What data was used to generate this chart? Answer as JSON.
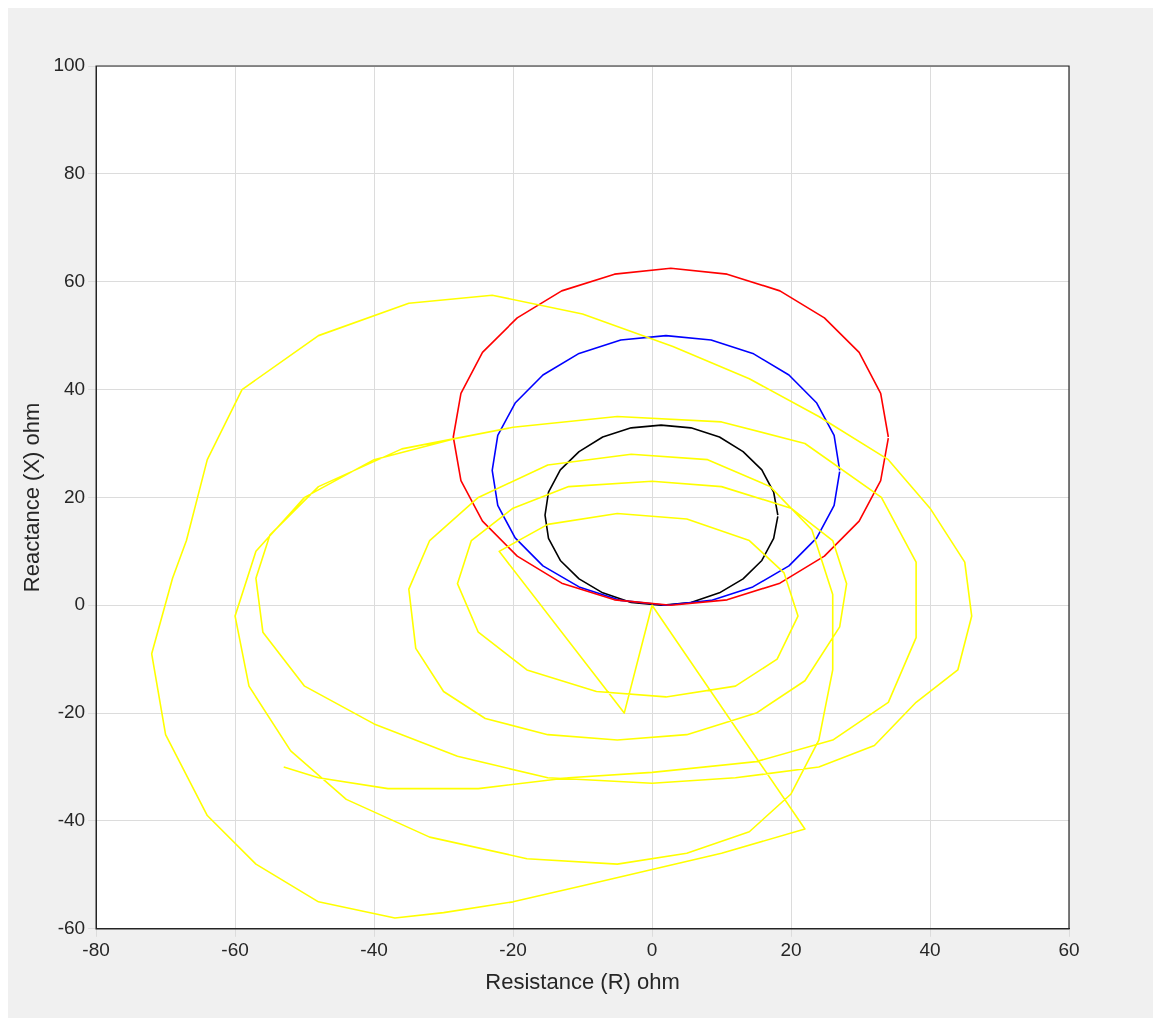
{
  "chart_data": {
    "type": "line",
    "xlabel": "Resistance (R) ohm",
    "ylabel": "Reactance (X) ohm",
    "xlim": [
      -80,
      60
    ],
    "xticks": [
      -80,
      -60,
      -40,
      -20,
      0,
      20,
      40,
      60
    ],
    "ylim": [
      -60,
      100
    ],
    "yticks": [
      -60,
      -40,
      -20,
      0,
      20,
      40,
      60,
      80,
      100
    ],
    "grid": true,
    "legend": false,
    "marker": "none",
    "line_style": "solid",
    "series": [
      {
        "color": "#ffff00",
        "x": [
          -28,
          -40,
          -50,
          -57,
          -60,
          -58,
          -52,
          -44,
          -32,
          -18,
          -5,
          5,
          14,
          20,
          24,
          26,
          26,
          23,
          17,
          8,
          -3,
          -15,
          -25,
          -32,
          -35,
          -34,
          -30,
          -24,
          -15,
          -5,
          5,
          15,
          22,
          27,
          28,
          26,
          20,
          10,
          0,
          -12,
          -20,
          -26,
          -28,
          -25,
          -18,
          -8,
          2,
          12,
          18,
          21,
          19,
          14,
          5,
          -5,
          -15,
          -22,
          -4,
          0,
          22,
          10,
          0,
          -10,
          -20,
          -30,
          -37,
          -48,
          -57,
          -64,
          -70,
          -72,
          -69,
          -67,
          -64,
          -59,
          -48,
          -35,
          -23,
          -10,
          3,
          14,
          24,
          34,
          40,
          45,
          46,
          44,
          38,
          32,
          24,
          12,
          0,
          -15,
          -28,
          -40,
          -50,
          -56,
          -57,
          -55,
          -48,
          -36,
          -20,
          -5,
          10,
          22,
          33,
          38,
          38,
          34,
          26,
          15,
          0,
          -12,
          -25,
          -38,
          -48,
          -53
        ],
        "values": [
          31,
          27,
          20,
          10,
          -2,
          -15,
          -27,
          -36,
          -43,
          -47,
          -48,
          -46,
          -42,
          -35,
          -25,
          -12,
          2,
          14,
          22,
          27,
          28,
          26,
          20,
          12,
          3,
          -8,
          -16,
          -21,
          -24,
          -25,
          -24,
          -20,
          -14,
          -4,
          4,
          12,
          18,
          22,
          23,
          22,
          18,
          12,
          4,
          -5,
          -12,
          -16,
          -17,
          -15,
          -10,
          -2,
          6,
          12,
          16,
          17,
          15,
          10,
          -20,
          0,
          -41.5,
          -46,
          -49,
          -52,
          -55,
          -57,
          -58,
          -55,
          -48,
          -39,
          -24,
          -9,
          5,
          12,
          27,
          40,
          50,
          56,
          57.5,
          54,
          48,
          42,
          35,
          27,
          18,
          8,
          -2,
          -12,
          -18,
          -26,
          -30,
          -32,
          -33,
          -32,
          -28,
          -22,
          -15,
          -5,
          5,
          13,
          22,
          29,
          33,
          35,
          34,
          30,
          20,
          8,
          -6,
          -18,
          -25,
          -29,
          -31,
          -32,
          -34,
          -34,
          -32,
          -30
        ]
      },
      {
        "color": "#ff0000",
        "x": [
          34,
          32.9,
          29.8,
          24.8,
          18.4,
          10.8,
          2.7,
          -5.4,
          -13,
          -19.4,
          -24.4,
          -27.5,
          -28.6,
          -27.5,
          -24.4,
          -19.4,
          -13,
          -5.4,
          2.7,
          10.8,
          18.4,
          24.8,
          29.8,
          32.9,
          34
        ],
        "values": [
          31.2,
          39.3,
          46.9,
          53.3,
          58.3,
          61.4,
          62.5,
          61.4,
          58.3,
          53.3,
          46.9,
          39.3,
          31.2,
          23.1,
          15.6,
          9.1,
          4.1,
          1,
          0,
          1,
          4.1,
          9.1,
          15.6,
          23.1,
          31
        ]
      },
      {
        "color": "#0000ff",
        "x": [
          27,
          26.2,
          23.7,
          19.7,
          14.5,
          8.5,
          2,
          -4.5,
          -10.5,
          -15.7,
          -19.7,
          -22.2,
          -23,
          -22.2,
          -19.7,
          -15.7,
          -10.5,
          -4.5,
          2,
          8.5,
          14.5,
          19.7,
          23.7,
          26.2,
          27
        ],
        "values": [
          25,
          31.5,
          37.5,
          42.7,
          46.7,
          49.2,
          50,
          49.2,
          46.7,
          42.7,
          37.5,
          31.5,
          25,
          18.5,
          12.5,
          7.3,
          3.4,
          0.9,
          0,
          0.9,
          3.4,
          7.3,
          12.5,
          18.5,
          24.8
        ]
      },
      {
        "color": "#000000",
        "x": [
          18.1,
          17.5,
          15.8,
          13.1,
          9.7,
          5.6,
          1.3,
          -3,
          -7.1,
          -10.5,
          -13.2,
          -14.9,
          -15.4,
          -14.9,
          -13.2,
          -10.5,
          -7.1,
          -3,
          1.3,
          5.6,
          9.7,
          13.1,
          15.8,
          17.5,
          18.1
        ],
        "values": [
          16.7,
          21,
          25.1,
          28.5,
          31.2,
          32.9,
          33.4,
          32.9,
          31.2,
          28.5,
          25.1,
          21,
          16.7,
          12.4,
          8.3,
          4.9,
          2.3,
          0.5,
          0,
          0.5,
          2.3,
          4.9,
          8.3,
          12.4,
          16.5
        ]
      }
    ]
  }
}
